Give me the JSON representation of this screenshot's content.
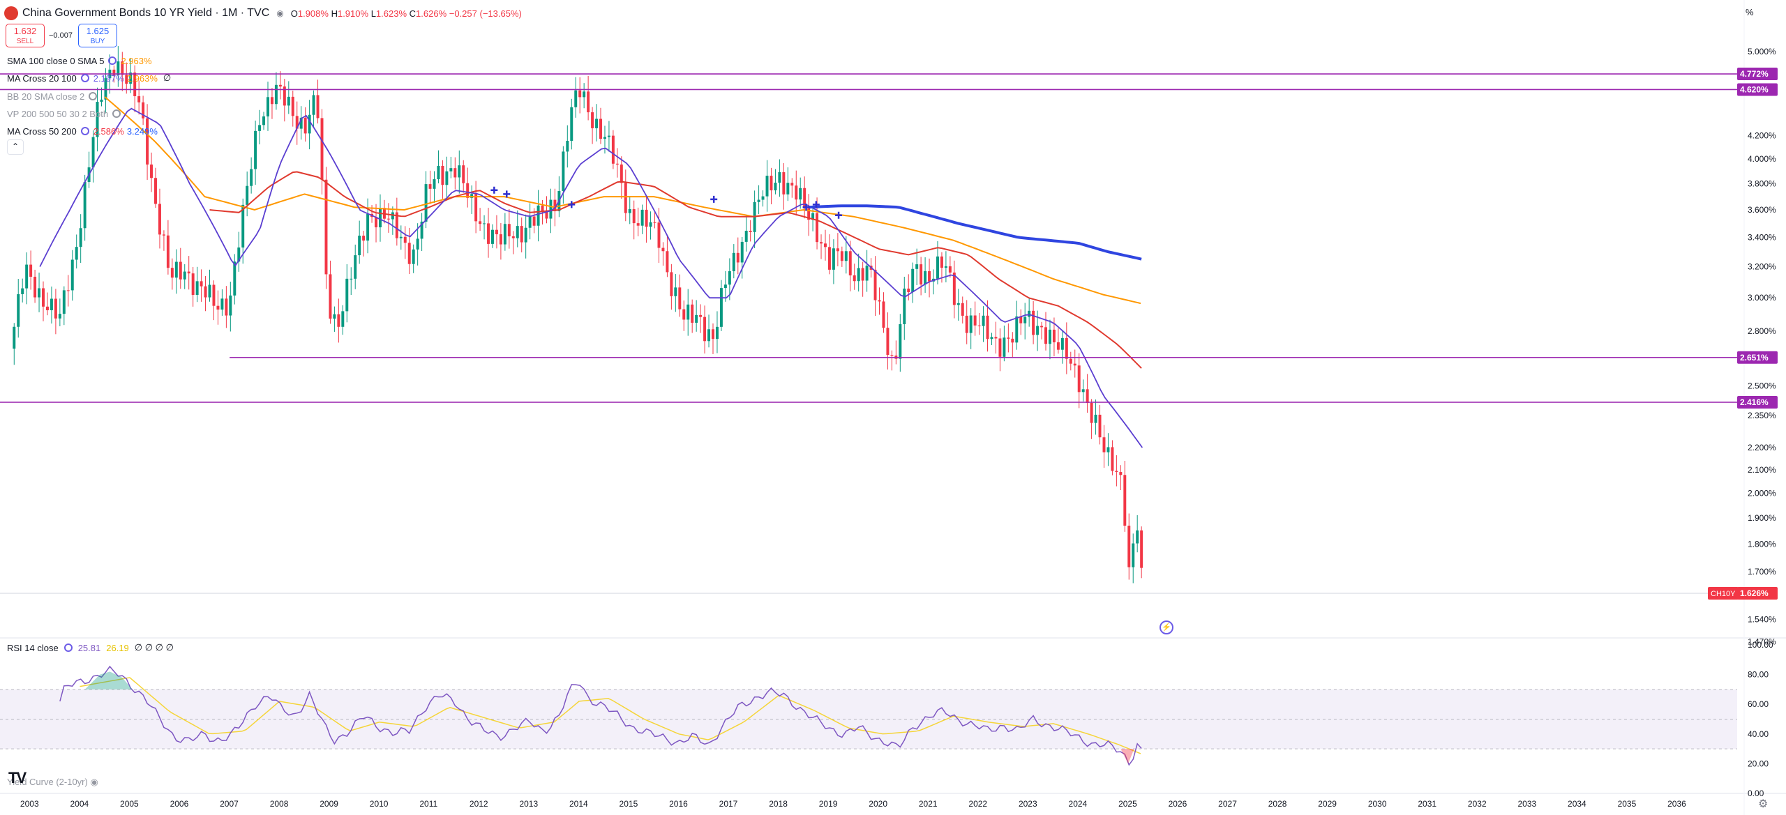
{
  "header": {
    "title": "China Government Bonds 10 YR Yield · 1M · TVC",
    "open_label": "O",
    "open": "1.908%",
    "high_label": "H",
    "high": "1.910%",
    "low_label": "L",
    "low": "1.623%",
    "close_label": "C",
    "close": "1.626%",
    "change": "−0.257 (−13.65%)"
  },
  "trade": {
    "sell_price": "1.632",
    "sell_label": "SELL",
    "buy_price": "1.625",
    "buy_label": "BUY",
    "spread": "−0.007"
  },
  "indicators": [
    {
      "name": "SMA 100 close 0 SMA 5",
      "values": [
        "2.963%"
      ],
      "colors": [
        "#ff9800"
      ],
      "null": ""
    },
    {
      "name": "MA Cross 20 100",
      "values": [
        "2.197%",
        "2.963%"
      ],
      "colors": [
        "#6c5ce7",
        "#ff9800"
      ],
      "null": "∅"
    },
    {
      "name": "BB 20 SMA close 2",
      "values": [],
      "colors": [],
      "null": ""
    },
    {
      "name": "VP 200 500 50 30 2 Both",
      "values": [],
      "colors": [],
      "null": ""
    },
    {
      "name": "MA Cross 50 200",
      "values": [
        "2.586%",
        "3.249%"
      ],
      "colors": [
        "#f23645",
        "#2962ff"
      ],
      "null": ""
    }
  ],
  "rsi_panel": {
    "label": "RSI 14 close",
    "rsi": "25.81",
    "rsi_ma": "26.19",
    "nulls": "∅ ∅ ∅ ∅",
    "rsi_color": "#7e57c2",
    "ma_color": "#f5d53a"
  },
  "yield_curve_label": "Yield Curve (2-10yr)",
  "unit_label": "%",
  "tv_logo": "TV",
  "price_axis": [
    "5.000%",
    "4.200%",
    "4.000%",
    "3.800%",
    "3.600%",
    "3.400%",
    "3.200%",
    "3.000%",
    "2.800%",
    "2.500%",
    "2.350%",
    "2.200%",
    "2.100%",
    "2.000%",
    "1.900%",
    "1.800%",
    "1.700%",
    "1.540%",
    "1.470%"
  ],
  "rsi_axis": [
    "100.00",
    "80.00",
    "60.00",
    "40.00",
    "20.00",
    "0.00"
  ],
  "time_axis": [
    "2003",
    "2004",
    "2005",
    "2006",
    "2007",
    "2008",
    "2009",
    "2010",
    "2011",
    "2012",
    "2013",
    "2014",
    "2015",
    "2016",
    "2017",
    "2018",
    "2019",
    "2020",
    "2021",
    "2022",
    "2023",
    "2024",
    "2025",
    "2026",
    "2027",
    "2028",
    "2029",
    "2030",
    "2031",
    "2032",
    "2033",
    "2034",
    "2035",
    "2036"
  ],
  "horizontal_lines": [
    {
      "value": 4.772,
      "label": "4.772%",
      "color": "#9c27b0"
    },
    {
      "value": 4.62,
      "label": "4.620%",
      "color": "#9c27b0"
    },
    {
      "value": 2.651,
      "label": "2.651%",
      "color": "#9c27b0",
      "from": 2007.0
    },
    {
      "value": 2.416,
      "label": "2.416%",
      "color": "#9c27b0"
    }
  ],
  "last_price": {
    "symbol": "CH10Y",
    "value": 1.626,
    "label": "1.626%",
    "color": "#f23645"
  },
  "chart_data": {
    "type": "candlestick",
    "title": "China Government Bonds 10 YR Yield",
    "scale": "log",
    "ylim": [
      1.44,
      5.25
    ],
    "xlim": [
      2002.4,
      2037.2
    ],
    "grid": true,
    "colors": {
      "up": "#089981",
      "down": "#f23645"
    },
    "price_anchors": [
      [
        2002.6,
        2.7
      ],
      [
        2002.9,
        3.15
      ],
      [
        2003.3,
        3.0
      ],
      [
        2003.6,
        2.85
      ],
      [
        2003.9,
        3.3
      ],
      [
        2004.2,
        4.0
      ],
      [
        2004.45,
        4.6
      ],
      [
        2004.7,
        4.95
      ],
      [
        2004.95,
        4.7
      ],
      [
        2005.2,
        4.45
      ],
      [
        2005.5,
        3.7
      ],
      [
        2005.8,
        3.1
      ],
      [
        2006.1,
        3.2
      ],
      [
        2006.4,
        3.05
      ],
      [
        2006.7,
        2.95
      ],
      [
        2007.0,
        3.0
      ],
      [
        2007.3,
        3.6
      ],
      [
        2007.6,
        4.4
      ],
      [
        2007.9,
        4.6
      ],
      [
        2008.2,
        4.45
      ],
      [
        2008.5,
        4.3
      ],
      [
        2008.75,
        4.5
      ],
      [
        2008.95,
        3.0
      ],
      [
        2009.15,
        2.85
      ],
      [
        2009.5,
        3.2
      ],
      [
        2009.8,
        3.6
      ],
      [
        2010.1,
        3.55
      ],
      [
        2010.4,
        3.4
      ],
      [
        2010.7,
        3.3
      ],
      [
        2010.95,
        3.7
      ],
      [
        2011.2,
        3.9
      ],
      [
        2011.5,
        3.95
      ],
      [
        2011.8,
        3.65
      ],
      [
        2012.1,
        3.5
      ],
      [
        2012.4,
        3.35
      ],
      [
        2012.7,
        3.45
      ],
      [
        2013.0,
        3.5
      ],
      [
        2013.3,
        3.55
      ],
      [
        2013.55,
        3.7
      ],
      [
        2013.8,
        4.3
      ],
      [
        2014.0,
        4.6
      ],
      [
        2014.25,
        4.4
      ],
      [
        2014.5,
        4.2
      ],
      [
        2014.75,
        3.9
      ],
      [
        2015.0,
        3.6
      ],
      [
        2015.3,
        3.5
      ],
      [
        2015.6,
        3.4
      ],
      [
        2015.85,
        3.1
      ],
      [
        2016.1,
        2.85
      ],
      [
        2016.4,
        2.9
      ],
      [
        2016.7,
        2.75
      ],
      [
        2016.95,
        3.1
      ],
      [
        2017.2,
        3.35
      ],
      [
        2017.5,
        3.55
      ],
      [
        2017.8,
        3.8
      ],
      [
        2018.0,
        3.9
      ],
      [
        2018.2,
        3.75
      ],
      [
        2018.45,
        3.65
      ],
      [
        2018.7,
        3.55
      ],
      [
        2019.0,
        3.2
      ],
      [
        2019.3,
        3.3
      ],
      [
        2019.55,
        3.15
      ],
      [
        2019.8,
        3.15
      ],
      [
        2020.1,
        2.85
      ],
      [
        2020.3,
        2.6
      ],
      [
        2020.5,
        2.95
      ],
      [
        2020.75,
        3.2
      ],
      [
        2021.0,
        3.15
      ],
      [
        2021.3,
        3.2
      ],
      [
        2021.55,
        3.0
      ],
      [
        2021.8,
        2.85
      ],
      [
        2022.1,
        2.8
      ],
      [
        2022.4,
        2.75
      ],
      [
        2022.7,
        2.75
      ],
      [
        2022.95,
        2.9
      ],
      [
        2023.2,
        2.85
      ],
      [
        2023.5,
        2.7
      ],
      [
        2023.8,
        2.7
      ],
      [
        2024.0,
        2.55
      ],
      [
        2024.2,
        2.35
      ],
      [
        2024.45,
        2.25
      ],
      [
        2024.7,
        2.15
      ],
      [
        2024.9,
        2.0
      ],
      [
        2025.0,
        1.65
      ],
      [
        2025.1,
        1.78
      ],
      [
        2025.2,
        1.908
      ],
      [
        2025.29,
        1.626
      ]
    ],
    "sma100": [
      [
        2004.5,
        4.55
      ],
      [
        2005.5,
        4.15
      ],
      [
        2006.5,
        3.7
      ],
      [
        2007.5,
        3.6
      ],
      [
        2008.5,
        3.72
      ],
      [
        2009.5,
        3.62
      ],
      [
        2010.5,
        3.6
      ],
      [
        2011.5,
        3.7
      ],
      [
        2012.5,
        3.7
      ],
      [
        2013.5,
        3.62
      ],
      [
        2014.5,
        3.7
      ],
      [
        2015.5,
        3.7
      ],
      [
        2016.5,
        3.62
      ],
      [
        2017.5,
        3.55
      ],
      [
        2018.5,
        3.6
      ],
      [
        2019.5,
        3.55
      ],
      [
        2020.5,
        3.47
      ],
      [
        2021.5,
        3.38
      ],
      [
        2022.5,
        3.25
      ],
      [
        2023.5,
        3.12
      ],
      [
        2024.5,
        3.02
      ],
      [
        2025.29,
        2.963
      ]
    ],
    "ma20": [
      [
        2003.2,
        3.2
      ],
      [
        2003.8,
        3.6
      ],
      [
        2004.5,
        4.1
      ],
      [
        2005.0,
        4.45
      ],
      [
        2005.6,
        4.3
      ],
      [
        2006.2,
        3.8
      ],
      [
        2006.8,
        3.4
      ],
      [
        2007.1,
        3.2
      ],
      [
        2007.6,
        3.45
      ],
      [
        2008.0,
        3.95
      ],
      [
        2008.5,
        4.4
      ],
      [
        2009.0,
        4.05
      ],
      [
        2009.6,
        3.6
      ],
      [
        2010.2,
        3.5
      ],
      [
        2010.6,
        3.4
      ],
      [
        2011.0,
        3.55
      ],
      [
        2011.5,
        3.75
      ],
      [
        2012.0,
        3.72
      ],
      [
        2012.5,
        3.6
      ],
      [
        2013.0,
        3.55
      ],
      [
        2013.5,
        3.6
      ],
      [
        2014.0,
        3.95
      ],
      [
        2014.5,
        4.1
      ],
      [
        2015.0,
        3.95
      ],
      [
        2015.5,
        3.6
      ],
      [
        2016.0,
        3.25
      ],
      [
        2016.6,
        3.0
      ],
      [
        2017.0,
        3.0
      ],
      [
        2017.5,
        3.35
      ],
      [
        2018.0,
        3.55
      ],
      [
        2018.5,
        3.65
      ],
      [
        2019.0,
        3.55
      ],
      [
        2019.5,
        3.3
      ],
      [
        2020.0,
        3.15
      ],
      [
        2020.5,
        3.0
      ],
      [
        2021.0,
        3.1
      ],
      [
        2021.5,
        3.15
      ],
      [
        2022.0,
        3.0
      ],
      [
        2022.5,
        2.85
      ],
      [
        2023.0,
        2.9
      ],
      [
        2023.5,
        2.85
      ],
      [
        2024.0,
        2.72
      ],
      [
        2024.5,
        2.45
      ],
      [
        2025.29,
        2.197
      ]
    ],
    "ma50": [
      [
        2006.6,
        3.6
      ],
      [
        2007.2,
        3.58
      ],
      [
        2007.8,
        3.78
      ],
      [
        2008.3,
        3.9
      ],
      [
        2008.8,
        3.85
      ],
      [
        2009.3,
        3.7
      ],
      [
        2009.9,
        3.58
      ],
      [
        2010.5,
        3.55
      ],
      [
        2011.0,
        3.62
      ],
      [
        2011.5,
        3.7
      ],
      [
        2012.0,
        3.75
      ],
      [
        2012.5,
        3.65
      ],
      [
        2013.0,
        3.58
      ],
      [
        2013.6,
        3.6
      ],
      [
        2014.2,
        3.7
      ],
      [
        2014.8,
        3.82
      ],
      [
        2015.5,
        3.78
      ],
      [
        2016.2,
        3.62
      ],
      [
        2016.8,
        3.55
      ],
      [
        2017.5,
        3.55
      ],
      [
        2018.2,
        3.58
      ],
      [
        2018.8,
        3.52
      ],
      [
        2019.4,
        3.42
      ],
      [
        2020.0,
        3.32
      ],
      [
        2020.6,
        3.28
      ],
      [
        2021.2,
        3.33
      ],
      [
        2021.8,
        3.28
      ],
      [
        2022.4,
        3.12
      ],
      [
        2023.0,
        3.0
      ],
      [
        2023.6,
        2.95
      ],
      [
        2024.2,
        2.85
      ],
      [
        2024.8,
        2.72
      ],
      [
        2025.29,
        2.586
      ]
    ],
    "ma200": [
      [
        2018.6,
        3.62
      ],
      [
        2019.2,
        3.63
      ],
      [
        2019.8,
        3.63
      ],
      [
        2020.4,
        3.62
      ],
      [
        2021.0,
        3.56
      ],
      [
        2021.6,
        3.5
      ],
      [
        2022.2,
        3.45
      ],
      [
        2022.8,
        3.4
      ],
      [
        2023.4,
        3.38
      ],
      [
        2024.0,
        3.36
      ],
      [
        2024.6,
        3.3
      ],
      [
        2025.29,
        3.249
      ]
    ],
    "rsi": [
      [
        2003.6,
        62
      ],
      [
        2003.7,
        71
      ],
      [
        2004.0,
        75
      ],
      [
        2004.4,
        80
      ],
      [
        2004.6,
        82
      ],
      [
        2004.8,
        80
      ],
      [
        2005.0,
        74
      ],
      [
        2005.3,
        64
      ],
      [
        2005.6,
        50
      ],
      [
        2005.9,
        38
      ],
      [
        2006.2,
        35
      ],
      [
        2006.5,
        40
      ],
      [
        2006.7,
        36
      ],
      [
        2007.0,
        38
      ],
      [
        2007.2,
        45
      ],
      [
        2007.5,
        60
      ],
      [
        2007.8,
        66
      ],
      [
        2008.0,
        58
      ],
      [
        2008.3,
        52
      ],
      [
        2008.6,
        66
      ],
      [
        2008.9,
        45
      ],
      [
        2009.1,
        36
      ],
      [
        2009.4,
        42
      ],
      [
        2009.7,
        52
      ],
      [
        2010.0,
        45
      ],
      [
        2010.3,
        40
      ],
      [
        2010.6,
        42
      ],
      [
        2010.9,
        58
      ],
      [
        2011.2,
        66
      ],
      [
        2011.5,
        62
      ],
      [
        2011.8,
        50
      ],
      [
        2012.1,
        42
      ],
      [
        2012.4,
        38
      ],
      [
        2012.7,
        44
      ],
      [
        2013.0,
        48
      ],
      [
        2013.3,
        42
      ],
      [
        2013.6,
        52
      ],
      [
        2013.8,
        68
      ],
      [
        2014.0,
        76
      ],
      [
        2014.2,
        64
      ],
      [
        2014.5,
        58
      ],
      [
        2014.8,
        52
      ],
      [
        2015.1,
        44
      ],
      [
        2015.4,
        40
      ],
      [
        2015.7,
        38
      ],
      [
        2016.0,
        34
      ],
      [
        2016.3,
        38
      ],
      [
        2016.6,
        33
      ],
      [
        2016.9,
        46
      ],
      [
        2017.2,
        58
      ],
      [
        2017.5,
        64
      ],
      [
        2017.8,
        68
      ],
      [
        2018.1,
        66
      ],
      [
        2018.4,
        58
      ],
      [
        2018.7,
        50
      ],
      [
        2019.0,
        44
      ],
      [
        2019.3,
        40
      ],
      [
        2019.6,
        44
      ],
      [
        2019.9,
        38
      ],
      [
        2020.2,
        34
      ],
      [
        2020.4,
        30
      ],
      [
        2020.7,
        45
      ],
      [
        2021.0,
        52
      ],
      [
        2021.3,
        55
      ],
      [
        2021.6,
        50
      ],
      [
        2021.9,
        46
      ],
      [
        2022.2,
        42
      ],
      [
        2022.5,
        46
      ],
      [
        2022.8,
        42
      ],
      [
        2023.1,
        50
      ],
      [
        2023.4,
        46
      ],
      [
        2023.7,
        42
      ],
      [
        2024.0,
        38
      ],
      [
        2024.3,
        33
      ],
      [
        2024.6,
        32
      ],
      [
        2024.9,
        28
      ],
      [
        2025.0,
        20
      ],
      [
        2025.1,
        26
      ],
      [
        2025.2,
        34
      ],
      [
        2025.29,
        25.81
      ]
    ],
    "rsi_ma": [
      [
        2004.0,
        72
      ],
      [
        2005.0,
        78
      ],
      [
        2005.8,
        55
      ],
      [
        2006.6,
        40
      ],
      [
        2007.3,
        42
      ],
      [
        2008.0,
        62
      ],
      [
        2008.7,
        58
      ],
      [
        2009.4,
        42
      ],
      [
        2010.0,
        48
      ],
      [
        2010.7,
        45
      ],
      [
        2011.4,
        58
      ],
      [
        2012.0,
        52
      ],
      [
        2012.8,
        44
      ],
      [
        2013.5,
        48
      ],
      [
        2014.0,
        62
      ],
      [
        2014.6,
        64
      ],
      [
        2015.3,
        50
      ],
      [
        2016.0,
        40
      ],
      [
        2016.6,
        36
      ],
      [
        2017.3,
        48
      ],
      [
        2018.0,
        66
      ],
      [
        2018.7,
        56
      ],
      [
        2019.4,
        44
      ],
      [
        2020.1,
        40
      ],
      [
        2020.8,
        42
      ],
      [
        2021.5,
        52
      ],
      [
        2022.2,
        48
      ],
      [
        2022.9,
        45
      ],
      [
        2023.5,
        47
      ],
      [
        2024.2,
        40
      ],
      [
        2024.8,
        33
      ],
      [
        2025.29,
        26.19
      ]
    ],
    "rsi_ylim": [
      0,
      100
    ],
    "rsi_bands": [
      30,
      50,
      70
    ]
  }
}
